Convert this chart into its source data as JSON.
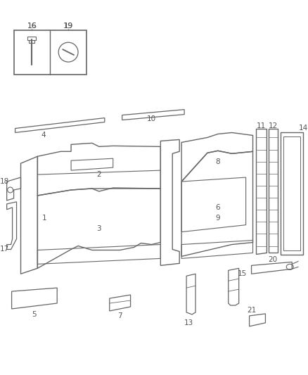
{
  "bg_color": "#ffffff",
  "line_color": "#666666",
  "label_color": "#555555",
  "figsize": [
    4.38,
    5.33
  ],
  "dpi": 100
}
